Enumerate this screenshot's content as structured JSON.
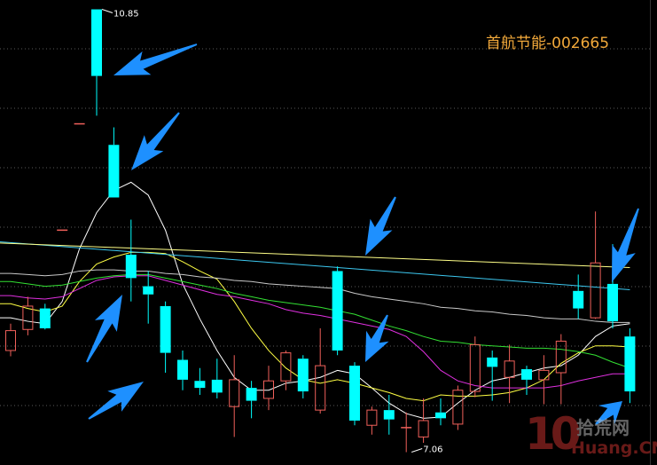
{
  "title": "首航节能-002665",
  "chart_data": {
    "type": "candlestick",
    "title": "首航节能-002665",
    "ylim": [
      6.95,
      10.93
    ],
    "grid": true,
    "colors": {
      "up": "#f0605a",
      "down": "#00ffff",
      "background": "#000000",
      "arrow": "#1e90ff",
      "title": "#f2a93b"
    },
    "annotations": [
      {
        "label": "10.85",
        "candle": 5,
        "value": 10.85
      },
      {
        "label": "7.06",
        "candle": 23,
        "value": 7.06
      }
    ],
    "candles": [
      {
        "o": 7.93,
        "c": 8.1,
        "h": 8.16,
        "l": 7.88
      },
      {
        "o": 8.11,
        "c": 8.31,
        "h": 8.39,
        "l": 8.06
      },
      {
        "o": 8.29,
        "c": 8.12,
        "h": 8.33,
        "l": 8.11
      },
      {
        "o": 8.96,
        "c": 8.96,
        "h": 8.96,
        "l": 8.96
      },
      {
        "o": 9.87,
        "c": 9.87,
        "h": 9.87,
        "l": 9.87
      },
      {
        "o": 10.85,
        "c": 10.28,
        "h": 10.85,
        "l": 9.94
      },
      {
        "o": 9.69,
        "c": 9.24,
        "h": 9.84,
        "l": 9.24
      },
      {
        "o": 8.75,
        "c": 8.55,
        "h": 9.05,
        "l": 8.35
      },
      {
        "o": 8.48,
        "c": 8.41,
        "h": 8.61,
        "l": 8.16
      },
      {
        "o": 8.31,
        "c": 7.91,
        "h": 8.35,
        "l": 7.74
      },
      {
        "o": 7.85,
        "c": 7.68,
        "h": 7.93,
        "l": 7.59
      },
      {
        "o": 7.67,
        "c": 7.61,
        "h": 7.78,
        "l": 7.55
      },
      {
        "o": 7.68,
        "c": 7.57,
        "h": 7.86,
        "l": 7.52
      },
      {
        "o": 7.45,
        "c": 7.68,
        "h": 7.89,
        "l": 7.19
      },
      {
        "o": 7.61,
        "c": 7.5,
        "h": 7.67,
        "l": 7.35
      },
      {
        "o": 7.52,
        "c": 7.67,
        "h": 7.8,
        "l": 7.42
      },
      {
        "o": 7.67,
        "c": 7.91,
        "h": 7.93,
        "l": 7.59
      },
      {
        "o": 7.86,
        "c": 7.58,
        "h": 7.89,
        "l": 7.52
      },
      {
        "o": 7.42,
        "c": 7.8,
        "h": 8.12,
        "l": 7.39
      },
      {
        "o": 8.61,
        "c": 7.93,
        "h": 8.65,
        "l": 7.89
      },
      {
        "o": 7.8,
        "c": 7.33,
        "h": 7.83,
        "l": 7.29
      },
      {
        "o": 7.29,
        "c": 7.42,
        "h": 7.45,
        "l": 7.21
      },
      {
        "o": 7.42,
        "c": 7.34,
        "h": 7.55,
        "l": 7.21
      },
      {
        "o": 7.27,
        "c": 7.27,
        "h": 7.4,
        "l": 7.06
      },
      {
        "o": 7.19,
        "c": 7.33,
        "h": 7.52,
        "l": 7.14
      },
      {
        "o": 7.4,
        "c": 7.35,
        "h": 7.52,
        "l": 7.29
      },
      {
        "o": 7.3,
        "c": 7.59,
        "h": 7.63,
        "l": 7.25
      },
      {
        "o": 7.58,
        "c": 7.98,
        "h": 8.05,
        "l": 7.53
      },
      {
        "o": 7.87,
        "c": 7.79,
        "h": 7.93,
        "l": 7.5
      },
      {
        "o": 7.7,
        "c": 7.84,
        "h": 7.98,
        "l": 7.48
      },
      {
        "o": 7.77,
        "c": 7.68,
        "h": 7.8,
        "l": 7.55
      },
      {
        "o": 7.68,
        "c": 7.76,
        "h": 7.89,
        "l": 7.47
      },
      {
        "o": 7.74,
        "c": 8.01,
        "h": 8.07,
        "l": 7.47
      },
      {
        "o": 8.44,
        "c": 8.29,
        "h": 8.58,
        "l": 8.2
      },
      {
        "o": 8.21,
        "c": 8.68,
        "h": 9.12,
        "l": 8.2
      },
      {
        "o": 8.5,
        "c": 8.18,
        "h": 8.84,
        "l": 8.12
      },
      {
        "o": 8.05,
        "c": 7.58,
        "h": 8.12,
        "l": 7.48
      }
    ],
    "moving_averages": [
      {
        "color": "#ffffff",
        "values": [
          8.21,
          8.18,
          8.16,
          8.35,
          8.8,
          9.11,
          9.3,
          9.37,
          9.26,
          8.96,
          8.5,
          8.2,
          7.93,
          7.7,
          7.59,
          7.59,
          7.65,
          7.67,
          7.7,
          7.76,
          7.73,
          7.61,
          7.48,
          7.39,
          7.35,
          7.36,
          7.48,
          7.59,
          7.67,
          7.7,
          7.74,
          7.78,
          7.8,
          7.89,
          8.05,
          8.14,
          8.16
        ]
      },
      {
        "color": "#ffff44",
        "values": [
          8.33,
          8.29,
          8.26,
          8.31,
          8.52,
          8.67,
          8.73,
          8.77,
          8.77,
          8.76,
          8.69,
          8.61,
          8.54,
          8.35,
          8.12,
          7.93,
          7.78,
          7.68,
          7.65,
          7.68,
          7.65,
          7.61,
          7.57,
          7.52,
          7.5,
          7.55,
          7.54,
          7.54,
          7.55,
          7.57,
          7.61,
          7.68,
          7.82,
          7.91,
          7.97,
          7.97,
          7.96
        ]
      },
      {
        "color": "#e030e0",
        "values": [
          8.4,
          8.38,
          8.37,
          8.39,
          8.46,
          8.53,
          8.56,
          8.57,
          8.57,
          8.53,
          8.49,
          8.45,
          8.41,
          8.39,
          8.36,
          8.33,
          8.28,
          8.25,
          8.23,
          8.2,
          8.17,
          8.14,
          8.11,
          8.05,
          7.92,
          7.76,
          7.67,
          7.63,
          7.61,
          7.61,
          7.61,
          7.61,
          7.63,
          7.67,
          7.7,
          7.73,
          7.73
        ]
      },
      {
        "color": "#33e033",
        "values": [
          8.52,
          8.5,
          8.48,
          8.49,
          8.52,
          8.55,
          8.57,
          8.58,
          8.58,
          8.55,
          8.52,
          8.49,
          8.46,
          8.42,
          8.39,
          8.36,
          8.34,
          8.32,
          8.3,
          8.27,
          8.24,
          8.19,
          8.14,
          8.1,
          8.05,
          8.01,
          8.0,
          7.98,
          7.97,
          7.96,
          7.95,
          7.95,
          7.94,
          7.92,
          7.89,
          7.83,
          7.78
        ]
      },
      {
        "color": "#c8c8c8",
        "values": [
          8.59,
          8.58,
          8.57,
          8.58,
          8.61,
          8.62,
          8.62,
          8.61,
          8.61,
          8.59,
          8.58,
          8.56,
          8.55,
          8.53,
          8.52,
          8.5,
          8.49,
          8.48,
          8.47,
          8.46,
          8.42,
          8.39,
          8.37,
          8.35,
          8.33,
          8.3,
          8.29,
          8.27,
          8.26,
          8.24,
          8.23,
          8.21,
          8.2,
          8.2,
          8.18,
          8.17,
          8.17
        ]
      },
      {
        "color": "#3cc8f0",
        "values": [
          8.86,
          8.45
        ]
      },
      {
        "color": "#ffff88",
        "values": [
          8.85,
          8.64
        ]
      }
    ]
  },
  "watermark": {
    "number": "10",
    "cn": "拾荒网",
    "en": "Huang.CN"
  }
}
